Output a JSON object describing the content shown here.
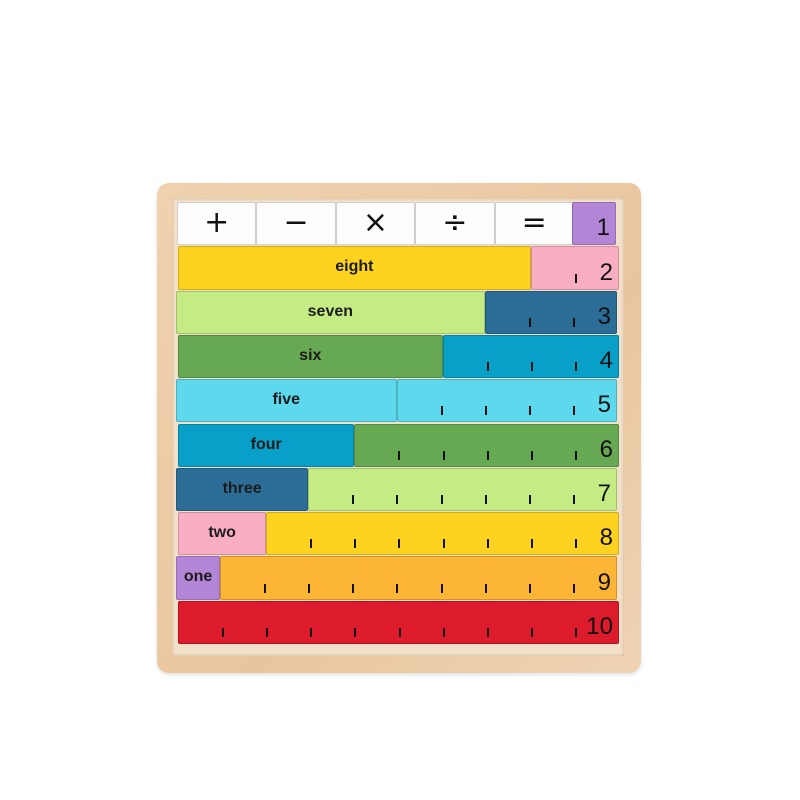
{
  "symbols_row": {
    "symbols": [
      "+",
      "−",
      "×",
      "÷",
      "="
    ],
    "one_tile": {
      "number": "1",
      "color": "#b285d6"
    }
  },
  "rows": [
    {
      "word": "eight",
      "value": 8,
      "word_color": "#fdd31f",
      "number": "2",
      "number_color": "#f9aec4"
    },
    {
      "word": "seven",
      "value": 7,
      "word_color": "#c5ec84",
      "number": "3",
      "number_color": "#2b6d97"
    },
    {
      "word": "six",
      "value": 6,
      "word_color": "#67a853",
      "number": "4",
      "number_color": "#08a0c8"
    },
    {
      "word": "five",
      "value": 5,
      "word_color": "#5ed8ec",
      "number": "5",
      "number_color": "#5ed8ec"
    },
    {
      "word": "four",
      "value": 4,
      "word_color": "#08a0c8",
      "number": "6",
      "number_color": "#67a853"
    },
    {
      "word": "three",
      "value": 3,
      "word_color": "#2b6d97",
      "number": "7",
      "number_color": "#c5ec84"
    },
    {
      "word": "two",
      "value": 2,
      "word_color": "#f9aec4",
      "number": "8",
      "number_color": "#fdd31f"
    },
    {
      "word": "one",
      "value": 1,
      "word_color": "#b285d6",
      "number": "9",
      "number_color": "#fdb535"
    },
    {
      "word": "",
      "value": 0,
      "word_color": "",
      "number": "10",
      "number_color": "#dc1c2c"
    }
  ]
}
